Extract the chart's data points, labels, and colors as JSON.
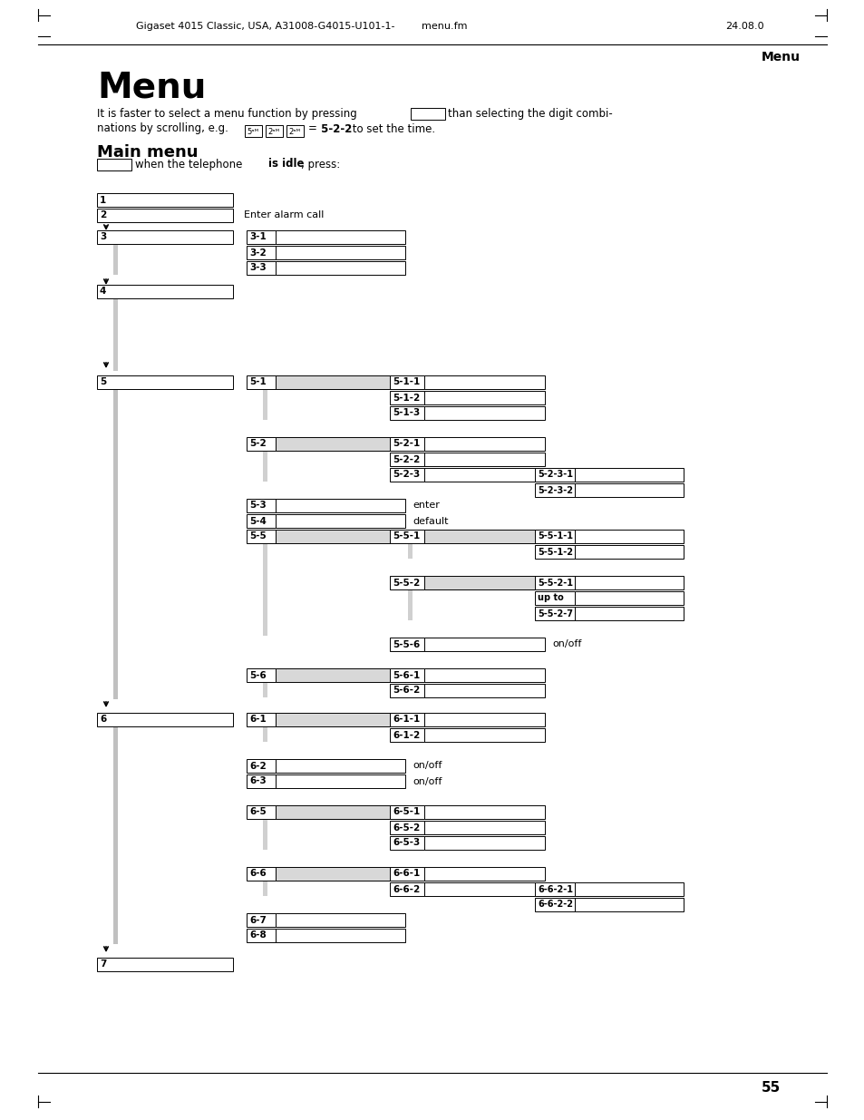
{
  "title_header": "Menu",
  "header_text": "Gigaset 4015 Classic, USA, A31008-G4015-U101-1-",
  "header_center": "menu.fm",
  "header_right": "24.08.0",
  "page_num": "55",
  "section_title": "Menu",
  "bg_color": "#ffffff"
}
